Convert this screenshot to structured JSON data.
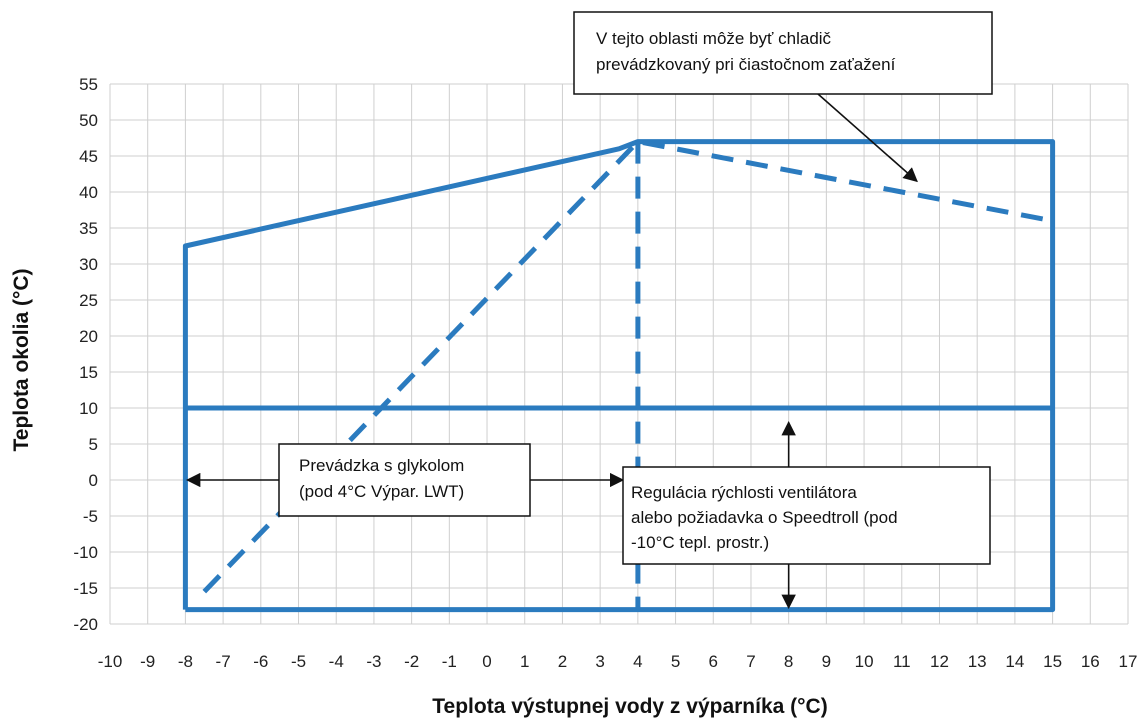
{
  "chart_data": {
    "type": "line",
    "title": "",
    "xlabel": "Teplota výstupnej vody z výparníka (°C)",
    "ylabel": "Teplota okolia (°C)",
    "xlim": [
      -10,
      17
    ],
    "ylim": [
      -20,
      55
    ],
    "x_ticks": [
      -10,
      -9,
      -8,
      -7,
      -6,
      -5,
      -4,
      -3,
      -2,
      -1,
      0,
      1,
      2,
      3,
      4,
      5,
      6,
      7,
      8,
      9,
      10,
      11,
      12,
      13,
      14,
      15,
      16,
      17
    ],
    "y_ticks": [
      55,
      50,
      45,
      40,
      35,
      30,
      25,
      20,
      15,
      10,
      5,
      0,
      -5,
      -10,
      -15,
      -20
    ],
    "grid": true,
    "line_color": "#2b7bbf",
    "series": [
      {
        "style": "solid",
        "x": [
          -8,
          -8,
          15,
          15,
          4,
          -8
        ],
        "y": [
          -18,
          32.5,
          -18,
          47,
          47,
          32.5
        ],
        "points": [
          [
            -8,
            -18
          ],
          [
            -8,
            32.5
          ],
          [
            3.5,
            46
          ],
          [
            4,
            47
          ],
          [
            15,
            47
          ],
          [
            15,
            -18
          ],
          [
            -8,
            -18
          ]
        ]
      },
      {
        "style": "solid",
        "points": [
          [
            -8,
            10
          ],
          [
            15,
            10
          ]
        ]
      },
      {
        "style": "dashed",
        "points": [
          [
            -7.5,
            -15.5
          ],
          [
            4,
            47
          ],
          [
            15,
            36
          ]
        ]
      },
      {
        "style": "dashed",
        "points": [
          [
            4,
            47
          ],
          [
            4,
            -18
          ]
        ]
      }
    ],
    "annotations": [
      {
        "lines": [
          "V tejto oblasti môže byť chladič",
          "prevádzkovaný pri čiastočnom zaťažení"
        ],
        "arrow_to": [
          11.4,
          41.5
        ]
      },
      {
        "lines": [
          "Prevádzka s glykolom",
          "(pod 4°C Výpar. LWT)"
        ],
        "arrow_left_to": [
          -8,
          0
        ],
        "arrow_right_to": [
          3.6,
          0
        ]
      },
      {
        "lines": [
          "Regulácia  rýchlosti  ventilátora",
          "alebo požiadavka o Speedtroll (pod",
          "-10°C tepl. prostr.)"
        ],
        "arrow_up_to": [
          8,
          8
        ],
        "arrow_down_to": [
          8,
          -18
        ]
      }
    ]
  }
}
